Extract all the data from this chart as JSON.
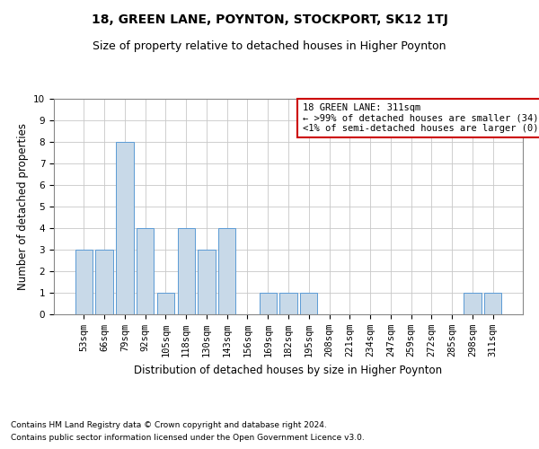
{
  "title": "18, GREEN LANE, POYNTON, STOCKPORT, SK12 1TJ",
  "subtitle": "Size of property relative to detached houses in Higher Poynton",
  "xlabel": "Distribution of detached houses by size in Higher Poynton",
  "ylabel": "Number of detached properties",
  "footnote1": "Contains HM Land Registry data © Crown copyright and database right 2024.",
  "footnote2": "Contains public sector information licensed under the Open Government Licence v3.0.",
  "categories": [
    "53sqm",
    "66sqm",
    "79sqm",
    "92sqm",
    "105sqm",
    "118sqm",
    "130sqm",
    "143sqm",
    "156sqm",
    "169sqm",
    "182sqm",
    "195sqm",
    "208sqm",
    "221sqm",
    "234sqm",
    "247sqm",
    "259sqm",
    "272sqm",
    "285sqm",
    "298sqm",
    "311sqm"
  ],
  "values": [
    3,
    3,
    8,
    4,
    1,
    4,
    3,
    4,
    0,
    1,
    1,
    1,
    0,
    0,
    0,
    0,
    0,
    0,
    0,
    1,
    1
  ],
  "bar_color": "#c8d9e8",
  "bar_edge_color": "#5b9bd5",
  "legend_text_line1": "18 GREEN LANE: 311sqm",
  "legend_text_line2": "← >99% of detached houses are smaller (34)",
  "legend_text_line3": "<1% of semi-detached houses are larger (0) →",
  "legend_box_color": "#cc0000",
  "ylim": [
    0,
    10
  ],
  "yticks": [
    0,
    1,
    2,
    3,
    4,
    5,
    6,
    7,
    8,
    9,
    10
  ],
  "grid_color": "#c8c8c8",
  "background_color": "#ffffff",
  "title_fontsize": 10,
  "subtitle_fontsize": 9,
  "axis_label_fontsize": 8.5,
  "tick_fontsize": 7.5,
  "legend_fontsize": 7.5,
  "footnote_fontsize": 6.5
}
